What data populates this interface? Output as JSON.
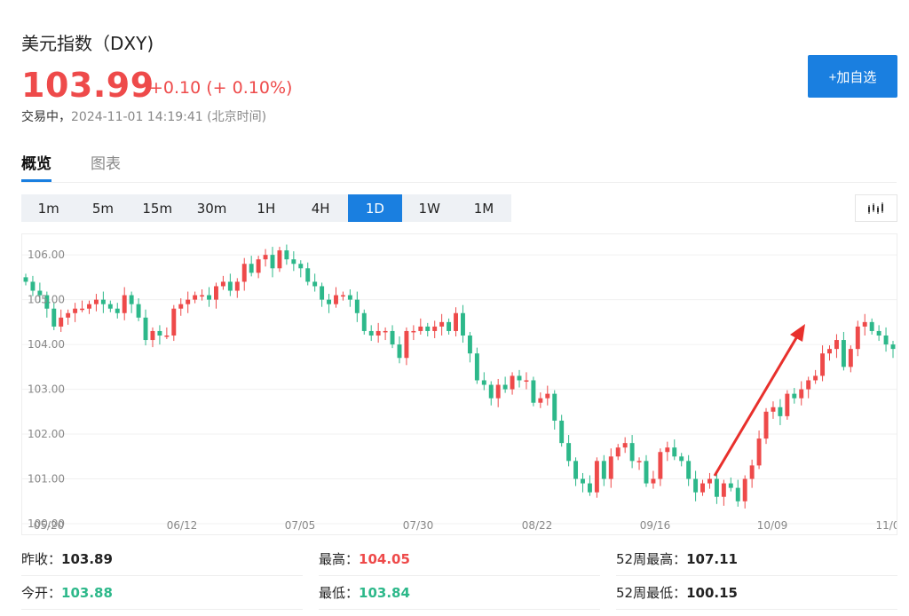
{
  "header": {
    "title": "美元指数（DXY)",
    "price": "103.99",
    "change": "+0.10 (+ 0.10%)",
    "status_label": "交易中，",
    "timestamp": "2024-11-01 14:19:41 (北京时间)",
    "add_button": "+加自选"
  },
  "tabs": [
    {
      "label": "概览",
      "active": true
    },
    {
      "label": "图表",
      "active": false
    }
  ],
  "periods": [
    {
      "label": "1m",
      "active": false
    },
    {
      "label": "5m",
      "active": false
    },
    {
      "label": "15m",
      "active": false
    },
    {
      "label": "30m",
      "active": false
    },
    {
      "label": "1H",
      "active": false
    },
    {
      "label": "4H",
      "active": false
    },
    {
      "label": "1D",
      "active": true
    },
    {
      "label": "1W",
      "active": false
    },
    {
      "label": "1M",
      "active": false
    }
  ],
  "chart_type_icon": "candlestick-icon",
  "colors": {
    "up": "#ee4a4a",
    "down": "#2db88a",
    "accent": "#1a7fe0"
  },
  "chart_data": {
    "type": "candlestick",
    "ylim": [
      100.0,
      106.3
    ],
    "y_ticks": [
      "106.00",
      "105.00",
      "104.00",
      "103.00",
      "102.00",
      "101.00",
      "100.00"
    ],
    "x_ticks": [
      "05/20",
      "06/12",
      "07/05",
      "07/30",
      "08/22",
      "09/16",
      "10/09",
      "11/0"
    ],
    "grid": true,
    "closes": [
      105.4,
      105.2,
      105.1,
      104.8,
      104.4,
      104.6,
      104.7,
      104.8,
      104.8,
      104.9,
      105.0,
      104.9,
      104.8,
      104.7,
      105.1,
      104.9,
      104.6,
      104.1,
      104.3,
      104.2,
      104.2,
      104.8,
      104.9,
      105.0,
      105.1,
      105.1,
      105.0,
      105.3,
      105.4,
      105.2,
      105.4,
      105.8,
      105.6,
      105.9,
      106.0,
      105.7,
      106.1,
      105.9,
      105.8,
      105.7,
      105.4,
      105.3,
      105.0,
      104.9,
      105.1,
      105.1,
      105.0,
      104.7,
      104.3,
      104.2,
      104.3,
      104.3,
      104.0,
      103.7,
      104.3,
      104.3,
      104.4,
      104.3,
      104.4,
      104.5,
      104.3,
      104.7,
      104.2,
      103.8,
      103.2,
      103.1,
      102.8,
      103.1,
      103.0,
      103.3,
      103.2,
      103.2,
      102.7,
      102.8,
      102.9,
      102.3,
      101.8,
      101.4,
      101.0,
      100.9,
      100.7,
      101.4,
      101.0,
      101.5,
      101.7,
      101.8,
      101.4,
      101.4,
      100.9,
      101.0,
      101.6,
      101.7,
      101.5,
      101.4,
      101.0,
      100.7,
      100.9,
      101.0,
      100.6,
      100.9,
      100.8,
      100.5,
      101.0,
      101.3,
      101.9,
      102.5,
      102.6,
      102.4,
      102.9,
      102.8,
      103.0,
      103.2,
      103.3,
      103.8,
      103.9,
      104.1,
      103.5,
      103.9,
      104.4,
      104.5,
      104.3,
      104.2,
      104.0,
      103.9
    ]
  },
  "stats": {
    "prev_close_label": "昨收：",
    "prev_close": "103.89",
    "open_label": "今开：",
    "open": "103.88",
    "high_label": "最高：",
    "high": "104.05",
    "low_label": "最低：",
    "low": "103.84",
    "wk52_high_label": "52周最高：",
    "wk52_high": "107.11",
    "wk52_low_label": "52周最低：",
    "wk52_low": "100.15"
  }
}
